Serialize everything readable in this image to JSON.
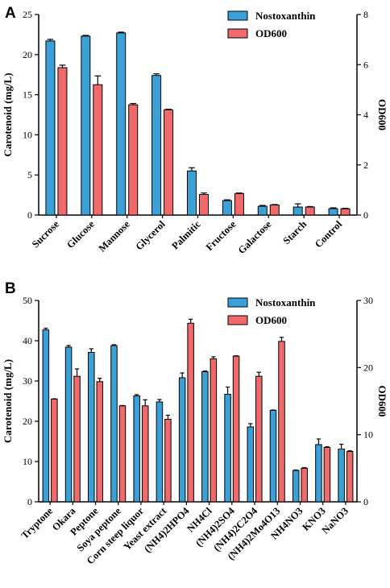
{
  "colors": {
    "nostoxanthin": "#3aa0d8",
    "od600": "#f0696b",
    "axis": "#000000"
  },
  "chart_data": [
    {
      "panel": "A",
      "type": "bar",
      "categories": [
        "Sucrose",
        "Glucose",
        "Mannose",
        "Glycerol",
        "Palmitic",
        "Fructose",
        "Galactose",
        "Starch",
        "Control"
      ],
      "series": [
        {
          "name": "Nostoxanthin",
          "axis": "left",
          "color": "#3aa0d8",
          "values": [
            21.7,
            22.3,
            22.7,
            17.4,
            5.5,
            1.8,
            1.1,
            1.0,
            0.8
          ],
          "errors": [
            0.2,
            0.1,
            0.1,
            0.2,
            0.4,
            0.1,
            0.1,
            0.4,
            0.1
          ]
        },
        {
          "name": "OD600",
          "axis": "right",
          "color": "#f0696b",
          "values": [
            5.88,
            5.2,
            4.4,
            4.2,
            0.82,
            0.86,
            0.4,
            0.32,
            0.25
          ],
          "errors": [
            0.1,
            0.35,
            0.05,
            0.02,
            0.06,
            0.02,
            0.02,
            0.02,
            0.02
          ]
        }
      ],
      "ylabel": "Carotenoid (mg/L)",
      "ylabel_right": "OD600",
      "ylim": [
        0,
        25
      ],
      "yticks": [
        0,
        5,
        10,
        15,
        20,
        25
      ],
      "ylim_right": [
        0,
        8
      ],
      "yticks_right": [
        0,
        2,
        4,
        6,
        8
      ],
      "legend": "top-right"
    },
    {
      "panel": "B",
      "type": "bar",
      "categories": [
        "Tryptone",
        "Okara",
        "Peptone",
        "Soya peptone",
        "Corn steep liquor",
        "Yeast extract",
        "(NH4)2HPO4",
        "NH4Cl",
        "(NH4)2SO4",
        "(NH4)2C2O4",
        "(NH4)2Mo4O13",
        "NH4NO3",
        "KNO3",
        "NaNO3"
      ],
      "series": [
        {
          "name": "Nostoxanthin",
          "axis": "left",
          "color": "#3aa0d8",
          "values": [
            42.7,
            38.4,
            37.1,
            38.8,
            26.3,
            24.8,
            30.8,
            32.3,
            26.7,
            18.6,
            22.7,
            7.8,
            14.2,
            13.1
          ],
          "errors": [
            0.4,
            0.4,
            0.9,
            0.2,
            0.3,
            0.6,
            1.2,
            0.2,
            1.8,
            0.8,
            0.1,
            0.1,
            1.4,
            1.2
          ]
        },
        {
          "name": "OD600",
          "axis": "right",
          "color": "#f0696b",
          "values": [
            15.3,
            18.7,
            17.9,
            14.3,
            14.3,
            12.3,
            26.6,
            21.3,
            21.7,
            18.7,
            23.9,
            5.0,
            8.1,
            7.5
          ],
          "errors": [
            0.05,
            1.1,
            0.5,
            0.05,
            0.9,
            0.6,
            0.6,
            0.3,
            0.05,
            0.6,
            0.6,
            0.1,
            0.1,
            0.1
          ]
        }
      ],
      "ylabel": "Carotenoid (mg/L)",
      "ylabel_right": "OD600",
      "ylim": [
        0,
        50
      ],
      "yticks": [
        0,
        10,
        20,
        30,
        40,
        50
      ],
      "ylim_right": [
        0,
        30
      ],
      "yticks_right": [
        0,
        10,
        20,
        30
      ],
      "legend": "top-right"
    }
  ]
}
